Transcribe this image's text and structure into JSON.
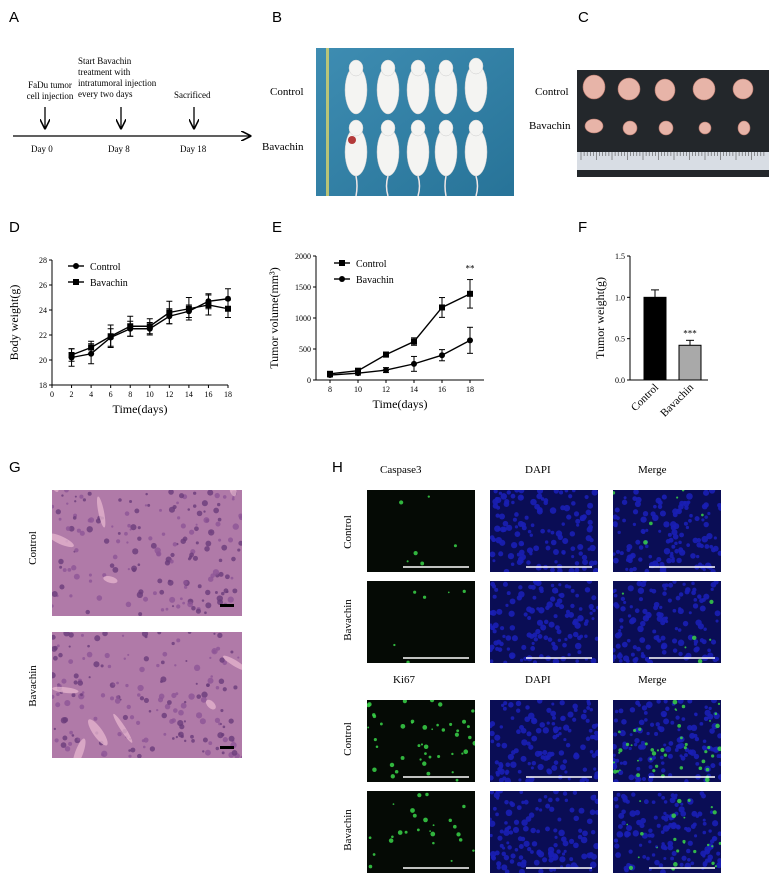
{
  "panels": {
    "A": "A",
    "B": "B",
    "C": "C",
    "D": "D",
    "E": "E",
    "F": "F",
    "G": "G",
    "H": "H"
  },
  "timeline": {
    "events": [
      {
        "label": "FaDu tumor cell injection",
        "day": "Day 0"
      },
      {
        "label": "Start Bavachin treatment with intratumoral injection every two days",
        "day": "Day 8"
      },
      {
        "label": "Sacrificed",
        "day": "Day 18"
      }
    ],
    "event_lines": [
      [
        "FaDu tumor",
        "cell injection"
      ],
      [
        "Start Bavachin",
        "treatment with",
        "intratumoral injection",
        "every two days"
      ],
      [
        "Sacrificed"
      ]
    ]
  },
  "photo_labels": {
    "B": [
      "Control",
      "Bavachin"
    ],
    "C": [
      "Control",
      "Bavachin"
    ]
  },
  "colors": {
    "mouse_background": "#2e7fa6",
    "tumor_background": "#23272b",
    "he_stain": "#b07aa8",
    "dapi": "#1a1fb5",
    "green": "#39d449"
  },
  "chart_data": [
    {
      "type": "line",
      "panel": "D",
      "xlabel": "Time(days)",
      "ylabel": "Body weight(g)",
      "xlim": [
        0,
        18
      ],
      "ylim": [
        18,
        28
      ],
      "xticks": [
        0,
        2,
        4,
        6,
        8,
        10,
        12,
        14,
        16,
        18
      ],
      "yticks": [
        18,
        20,
        22,
        24,
        26,
        28
      ],
      "legend": "top-left",
      "series": [
        {
          "name": "Control",
          "marker": "circle",
          "x": [
            2,
            4,
            6,
            8,
            10,
            12,
            14,
            16,
            18
          ],
          "y": [
            20.2,
            20.5,
            21.8,
            22.5,
            22.5,
            23.5,
            23.9,
            24.7,
            24.9
          ],
          "err": [
            0.7,
            0.8,
            0.7,
            0.6,
            0.5,
            0.6,
            0.5,
            0.6,
            0.8
          ]
        },
        {
          "name": "Bavachin",
          "marker": "square",
          "x": [
            2,
            4,
            6,
            8,
            10,
            12,
            14,
            16,
            18
          ],
          "y": [
            20.4,
            21.0,
            21.9,
            22.7,
            22.7,
            23.8,
            24.1,
            24.4,
            24.1
          ],
          "err": [
            0.5,
            0.5,
            0.9,
            0.8,
            0.6,
            0.9,
            0.9,
            0.8,
            0.7
          ]
        }
      ]
    },
    {
      "type": "line",
      "panel": "E",
      "xlabel": "Time(days)",
      "ylabel": "Tumor volume(mm³)",
      "xlim": [
        7,
        19
      ],
      "ylim": [
        0,
        2000
      ],
      "xticks": [
        8,
        10,
        12,
        14,
        16,
        18
      ],
      "yticks": [
        0,
        500,
        1000,
        1500,
        2000
      ],
      "legend": "top-left",
      "annotation": "**",
      "series": [
        {
          "name": "Control",
          "marker": "square",
          "x": [
            8,
            10,
            12,
            14,
            16,
            18
          ],
          "y": [
            100,
            150,
            410,
            620,
            1170,
            1390
          ],
          "err": [
            30,
            30,
            40,
            60,
            160,
            230
          ]
        },
        {
          "name": "Bavachin",
          "marker": "circle",
          "x": [
            8,
            10,
            12,
            14,
            16,
            18
          ],
          "y": [
            80,
            110,
            160,
            260,
            400,
            640
          ],
          "err": [
            30,
            30,
            40,
            120,
            90,
            210
          ]
        }
      ]
    },
    {
      "type": "bar",
      "panel": "F",
      "ylabel": "Tumor weight(g)",
      "categories": [
        "Control",
        "Bavachin"
      ],
      "values": [
        1.0,
        0.42
      ],
      "err": [
        0.09,
        0.06
      ],
      "colors": [
        "#000000",
        "#a9a9a9"
      ],
      "ylim": [
        0,
        1.5
      ],
      "yticks": [
        0.0,
        0.5,
        1.0,
        1.5
      ],
      "annotation": "***"
    }
  ],
  "histology": {
    "G_labels": [
      "Control",
      "Bavachin"
    ],
    "H_rows": [
      {
        "group": "Control",
        "block": "caspase"
      },
      {
        "group": "Bavachin",
        "block": "caspase"
      },
      {
        "group": "Control",
        "block": "ki67"
      },
      {
        "group": "Bavachin",
        "block": "ki67"
      }
    ],
    "H_headers_top": [
      "Caspase3",
      "DAPI",
      "Merge"
    ],
    "H_headers_bottom": [
      "Ki67",
      "DAPI",
      "Merge"
    ]
  }
}
